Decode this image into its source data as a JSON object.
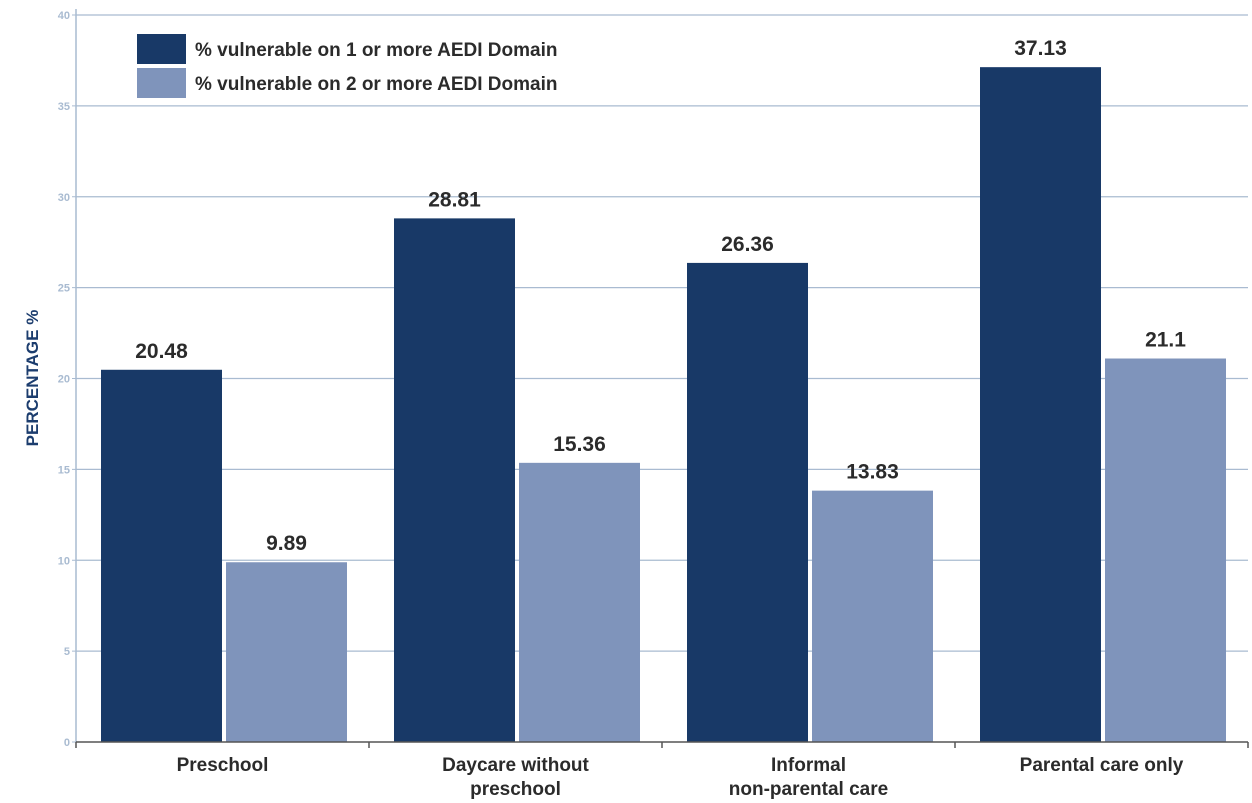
{
  "colors": {
    "series1": "#183967",
    "series2": "#7f94bb",
    "grid": "#a9bbd1",
    "tick_text": "#a9bbd1",
    "axis": "#555555",
    "label_text": "#2b2b2b",
    "y_title": "#1c3d6e"
  },
  "chart_data": {
    "type": "bar",
    "ylabel": "PERCENTAGE %",
    "ylim": [
      0,
      40
    ],
    "yticks": [
      0,
      5,
      10,
      15,
      20,
      25,
      30,
      35,
      40
    ],
    "grid": true,
    "legend_position": "top-left",
    "categories": [
      [
        "Preschool"
      ],
      [
        "Daycare without",
        "preschool"
      ],
      [
        "Informal",
        "non-parental care"
      ],
      [
        "Parental care only"
      ]
    ],
    "series": [
      {
        "name": "% vulnerable on 1 or more AEDI Domain",
        "values": [
          20.48,
          28.81,
          26.36,
          37.13
        ],
        "labels": [
          "20.48",
          "28.81",
          "26.36",
          "37.13"
        ]
      },
      {
        "name": "% vulnerable on 2 or more AEDI Domain",
        "values": [
          9.89,
          15.36,
          13.83,
          21.1
        ],
        "labels": [
          "9.89",
          "15.36",
          "13.83",
          "21.1"
        ]
      }
    ]
  }
}
